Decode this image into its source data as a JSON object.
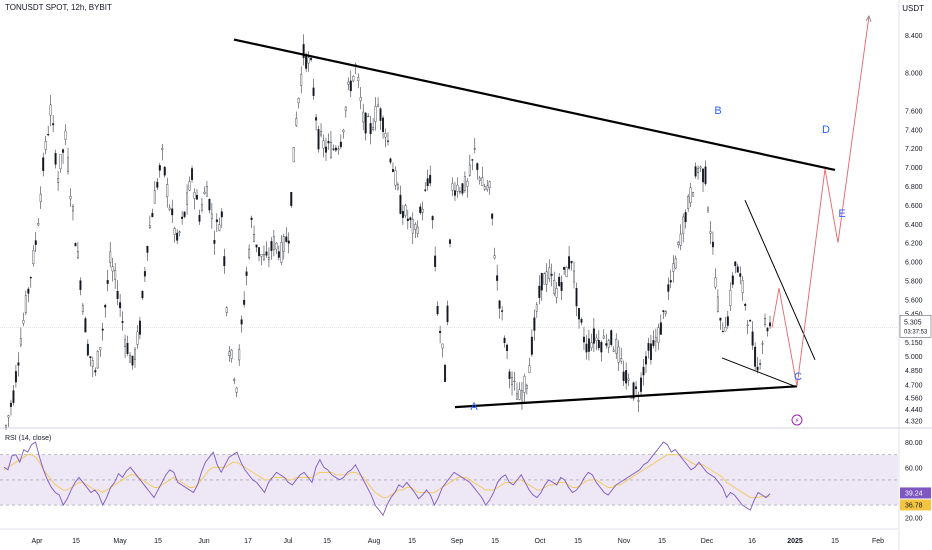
{
  "header": {
    "symbol_line": "TONUSDT SPOT, 12h, BYBIT",
    "currency": "USDT"
  },
  "chart_data": [
    {
      "type": "candlestick",
      "title": "TONUSDT SPOT, 12h, BYBIT",
      "y_axis_label": "USDT",
      "y_ticks": [
        "8.400",
        "8.000",
        "7.600",
        "7.400",
        "7.200",
        "7.000",
        "6.800",
        "6.600",
        "6.400",
        "6.200",
        "6.000",
        "5.800",
        "5.600",
        "5.450",
        "5.150",
        "5.000",
        "4.850",
        "4.700",
        "4.560",
        "4.440",
        "4.320"
      ],
      "x_ticks": [
        "Apr",
        "15",
        "May",
        "15",
        "Jun",
        "17",
        "Jul",
        "15",
        "Aug",
        "15",
        "Sep",
        "15",
        "Oct",
        "15",
        "Nov",
        "15",
        "Dec",
        "16",
        "2025",
        "15",
        "Feb"
      ],
      "ylim": [
        4.26,
        8.62
      ],
      "last_price": "5.305",
      "countdown": "03:37:53",
      "close_series": [
        4.25,
        4.6,
        5.2,
        5.7,
        6.2,
        7.0,
        7.6,
        6.9,
        7.3,
        6.5,
        5.8,
        5.1,
        4.8,
        5.3,
        6.0,
        5.7,
        5.2,
        4.9,
        5.3,
        6.2,
        6.7,
        7.1,
        6.6,
        6.2,
        6.5,
        6.9,
        6.5,
        6.8,
        6.3,
        6.5,
        5.1,
        4.7,
        5.6,
        6.4,
        6.1,
        6.0,
        6.2,
        6.1,
        6.3,
        7.5,
        8.2,
        8.05,
        7.3,
        7.2,
        7.2,
        7.3,
        7.8,
        8.05,
        7.5,
        7.4,
        7.65,
        7.4,
        7.0,
        6.6,
        6.45,
        6.3,
        6.6,
        6.9,
        5.5,
        4.8,
        6.8,
        6.8,
        6.8,
        7.15,
        6.8,
        6.75,
        5.8,
        5.2,
        4.7,
        4.55,
        4.75,
        5.3,
        5.8,
        5.85,
        5.7,
        5.85,
        6.05,
        5.4,
        5.1,
        5.2,
        5.15,
        5.2,
        5.1,
        4.8,
        4.65,
        4.6,
        5.0,
        5.1,
        5.3,
        5.65,
        6.0,
        6.4,
        6.7,
        7.0,
        6.9,
        6.1,
        5.3,
        5.4,
        6.0,
        5.7,
        5.3,
        4.85,
        5.35,
        5.3
      ],
      "annotations": [
        {
          "label": "A",
          "x": "early Sep",
          "y": 4.44
        },
        {
          "label": "B",
          "x": "early Dec",
          "y": 7.23
        },
        {
          "label": "C",
          "x": "late Dec",
          "y": 4.66
        },
        {
          "label": "D",
          "x": "early Jan",
          "y": 7.05
        },
        {
          "label": "E",
          "x": "mid Jan",
          "y": 6.12
        }
      ],
      "trend_lines": [
        {
          "name": "upper",
          "from": {
            "x": "early Jun",
            "y": 8.35
          },
          "to": {
            "x": "early Jan",
            "y": 6.97
          }
        },
        {
          "name": "lower",
          "from": {
            "x": "early Sep",
            "y": 4.46
          },
          "to": {
            "x": "late Dec",
            "y": 4.68
          }
        }
      ],
      "projection_path": [
        {
          "x": "late Dec",
          "y": 5.3
        },
        {
          "x": "late Dec",
          "y": 5.72
        },
        {
          "x": "late Dec",
          "y": 4.68
        },
        {
          "x": "early Jan",
          "y": 6.98
        },
        {
          "x": "mid Jan",
          "y": 6.2
        },
        {
          "x": "late Jan",
          "y": 8.6
        }
      ]
    },
    {
      "type": "line",
      "title": "RSI (14, close)",
      "y_ticks": [
        "80.00",
        "60.00",
        "40.00",
        "20.00"
      ],
      "ylim": [
        15,
        88
      ],
      "bands": [
        70,
        50,
        30
      ],
      "rsi_value": "39.24",
      "ma_value": "36.78",
      "series": [
        {
          "values": [
            60,
            58,
            69,
            70,
            64,
            74,
            72,
            78,
            80,
            68,
            58,
            50,
            44,
            40,
            38,
            30,
            35,
            42,
            48,
            52,
            48,
            44,
            40,
            42,
            38,
            30,
            36,
            44,
            48,
            55,
            52,
            57,
            60,
            56,
            52,
            48,
            44,
            40,
            36,
            42,
            48,
            54,
            58,
            56,
            48,
            46,
            44,
            42,
            40,
            46,
            56,
            64,
            68,
            72,
            62,
            56,
            62,
            68,
            70,
            72,
            64,
            58,
            54,
            50,
            48,
            44,
            40,
            48,
            52,
            56,
            54,
            52,
            48,
            46,
            50,
            54,
            56,
            52,
            48,
            60,
            66,
            60,
            58,
            54,
            52,
            50,
            52,
            56,
            58,
            62,
            56,
            50,
            44,
            38,
            30,
            26,
            22,
            30,
            36,
            40,
            46,
            44,
            48,
            44,
            40,
            35,
            38,
            42,
            38,
            30,
            36,
            44,
            48,
            52,
            56,
            54,
            52,
            50,
            48,
            44,
            40,
            36,
            30,
            34,
            40,
            48,
            52,
            54,
            48,
            46,
            50,
            54,
            48,
            42,
            38,
            36,
            40,
            46,
            50,
            48,
            46,
            52,
            50,
            44,
            40,
            42,
            46,
            52,
            56,
            54,
            48,
            44,
            40,
            38,
            42,
            46,
            48,
            50,
            52,
            54,
            56,
            58,
            62,
            64,
            68,
            72,
            76,
            80,
            78,
            72,
            74,
            70,
            66,
            62,
            58,
            60,
            64,
            60,
            56,
            54,
            52,
            48,
            44,
            36,
            40,
            38,
            34,
            30,
            28,
            26,
            34,
            40,
            38,
            36,
            39
          ]
        },
        {
          "values": [
            58,
            60,
            62,
            64,
            66,
            68,
            70,
            70,
            68,
            64,
            58,
            54,
            50,
            46,
            44,
            42,
            42,
            44,
            46,
            48,
            48,
            46,
            44,
            42,
            42,
            40,
            42,
            44,
            46,
            48,
            50,
            52,
            54,
            54,
            52,
            50,
            48,
            46,
            44,
            44,
            46,
            48,
            50,
            52,
            50,
            48,
            46,
            44,
            44,
            46,
            50,
            54,
            58,
            60,
            60,
            60,
            60,
            62,
            64,
            64,
            62,
            60,
            58,
            56,
            54,
            52,
            50,
            50,
            52,
            52,
            52,
            52,
            50,
            50,
            52,
            52,
            52,
            52,
            52,
            54,
            56,
            56,
            56,
            56,
            54,
            54,
            54,
            54,
            56,
            56,
            54,
            52,
            48,
            44,
            40,
            38,
            36,
            36,
            38,
            40,
            42,
            42,
            44,
            44,
            42,
            40,
            40,
            40,
            40,
            40,
            42,
            44,
            46,
            48,
            50,
            52,
            52,
            52,
            50,
            48,
            46,
            44,
            42,
            42,
            42,
            44,
            46,
            48,
            48,
            48,
            50,
            50,
            48,
            46,
            44,
            42,
            42,
            44,
            46,
            46,
            48,
            48,
            48,
            46,
            44,
            44,
            46,
            48,
            50,
            50,
            50,
            48,
            46,
            44,
            44,
            46,
            46,
            48,
            50,
            52,
            54,
            56,
            58,
            60,
            62,
            64,
            66,
            68,
            70,
            70,
            70,
            70,
            68,
            66,
            64,
            62,
            62,
            62,
            60,
            58,
            56,
            54,
            52,
            48,
            46,
            44,
            42,
            40,
            38,
            36,
            36,
            36,
            37,
            37,
            37
          ]
        }
      ]
    }
  ],
  "colors": {
    "up_candle": "#ffffff",
    "down_candle": "#131722",
    "trend_line": "#000000",
    "projection": "#e8636b",
    "wave_label": "#2962ff",
    "rsi_line": "#7e57c2",
    "rsi_ma": "#f5c542",
    "rsi_band": "#ede7f6",
    "event_icon": "#9c27b0"
  },
  "icons": {
    "event_marker": "lightning-circle-icon"
  }
}
